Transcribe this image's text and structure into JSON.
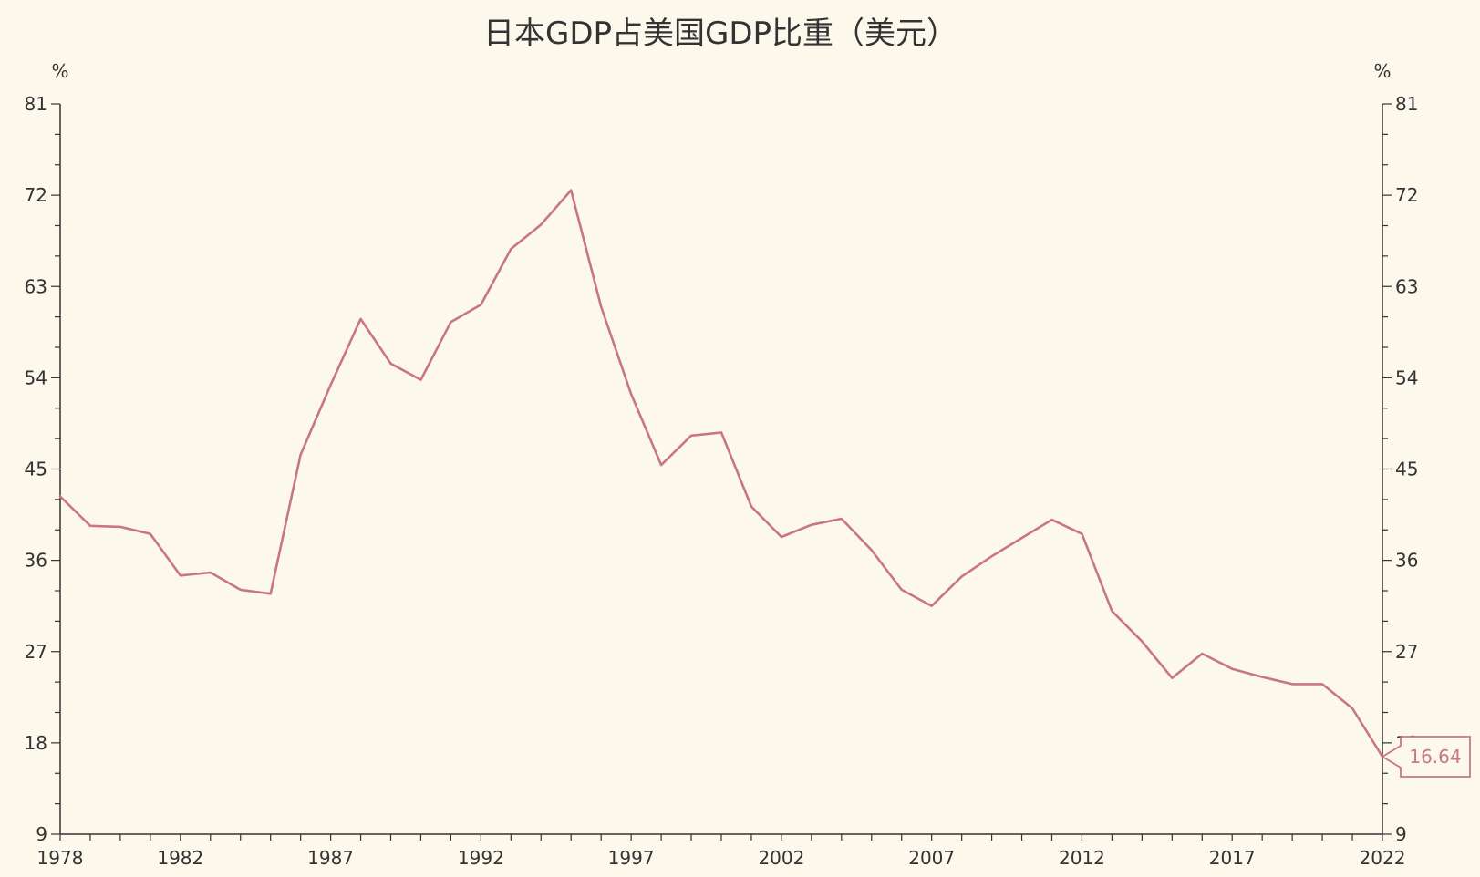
{
  "chart_data": {
    "type": "line",
    "title": "日本GDP占美国GDP比重（美元）",
    "left_unit": "%",
    "right_unit": "%",
    "xlim": [
      1978,
      2022
    ],
    "ylim": [
      9,
      81
    ],
    "x_tick_labels": [
      "1978",
      "1982",
      "1987",
      "1992",
      "1997",
      "2002",
      "2007",
      "2012",
      "2017",
      "2022"
    ],
    "y_tick_labels": [
      "9",
      "18",
      "27",
      "36",
      "45",
      "54",
      "63",
      "72",
      "81"
    ],
    "grid": false,
    "line_color": "#c9777e",
    "series": [
      {
        "x": [
          1978,
          1979,
          1980,
          1981,
          1982,
          1983,
          1984,
          1985,
          1986,
          1987,
          1988,
          1989,
          1990,
          1991,
          1992,
          1993,
          1994,
          1995,
          1996,
          1997,
          1998,
          1999,
          2000,
          2001,
          2002,
          2003,
          2004,
          2005,
          2006,
          2007,
          2008,
          2009,
          2010,
          2011,
          2012,
          2013,
          2014,
          2015,
          2016,
          2017,
          2018,
          2019,
          2020,
          2021,
          2022
        ],
        "values": [
          42.3,
          39.4,
          39.3,
          38.6,
          34.5,
          34.8,
          33.1,
          32.7,
          46.4,
          53.3,
          59.8,
          55.4,
          53.8,
          59.5,
          61.2,
          66.7,
          69.1,
          72.5,
          61.0,
          52.4,
          45.4,
          48.3,
          48.6,
          41.3,
          38.3,
          39.5,
          40.1,
          37.0,
          33.1,
          31.5,
          34.4,
          36.4,
          38.2,
          40.0,
          38.6,
          31.0,
          28.0,
          24.4,
          26.8,
          25.3,
          24.5,
          23.8,
          23.8,
          21.4,
          16.64
        ]
      }
    ],
    "last_value_label": "16.64"
  }
}
